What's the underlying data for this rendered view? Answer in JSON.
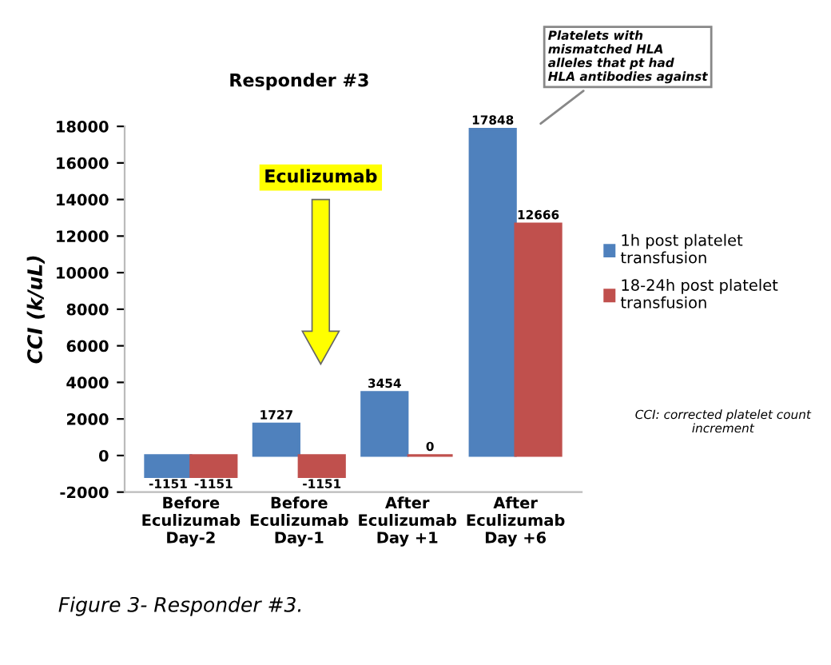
{
  "chart_data": {
    "type": "bar",
    "title": "Responder #3",
    "ylabel": "CCI (k/uL)",
    "categories": [
      "Before\nEculizumab\nDay-2",
      "Before\nEculizumab\nDay-1",
      "After\nEculizumab\nDay +1",
      "After\nEculizumab\nDay +6"
    ],
    "series": [
      {
        "name": "1h post platelet\ntransfusion",
        "color": "#4f81bd",
        "values": [
          -1151,
          1727,
          3454,
          17848
        ]
      },
      {
        "name": "18-24h post platelet\ntransfusion",
        "color": "#c0504d",
        "values": [
          -1151,
          -1151,
          0,
          12666
        ]
      }
    ],
    "ylim": [
      -2000,
      18000
    ],
    "yticks": [
      -2000,
      0,
      2000,
      4000,
      6000,
      8000,
      10000,
      12000,
      14000,
      16000,
      18000
    ],
    "data_labels": true,
    "grid": false,
    "legend": "right",
    "annotations": [
      "Eculizumab",
      "Platelets with\nmismatched HLA\nalleles that pt had\nHLA antibodies against",
      "CCI: corrected platelet count\nincrement",
      "Figure 3- Responder #3."
    ]
  }
}
